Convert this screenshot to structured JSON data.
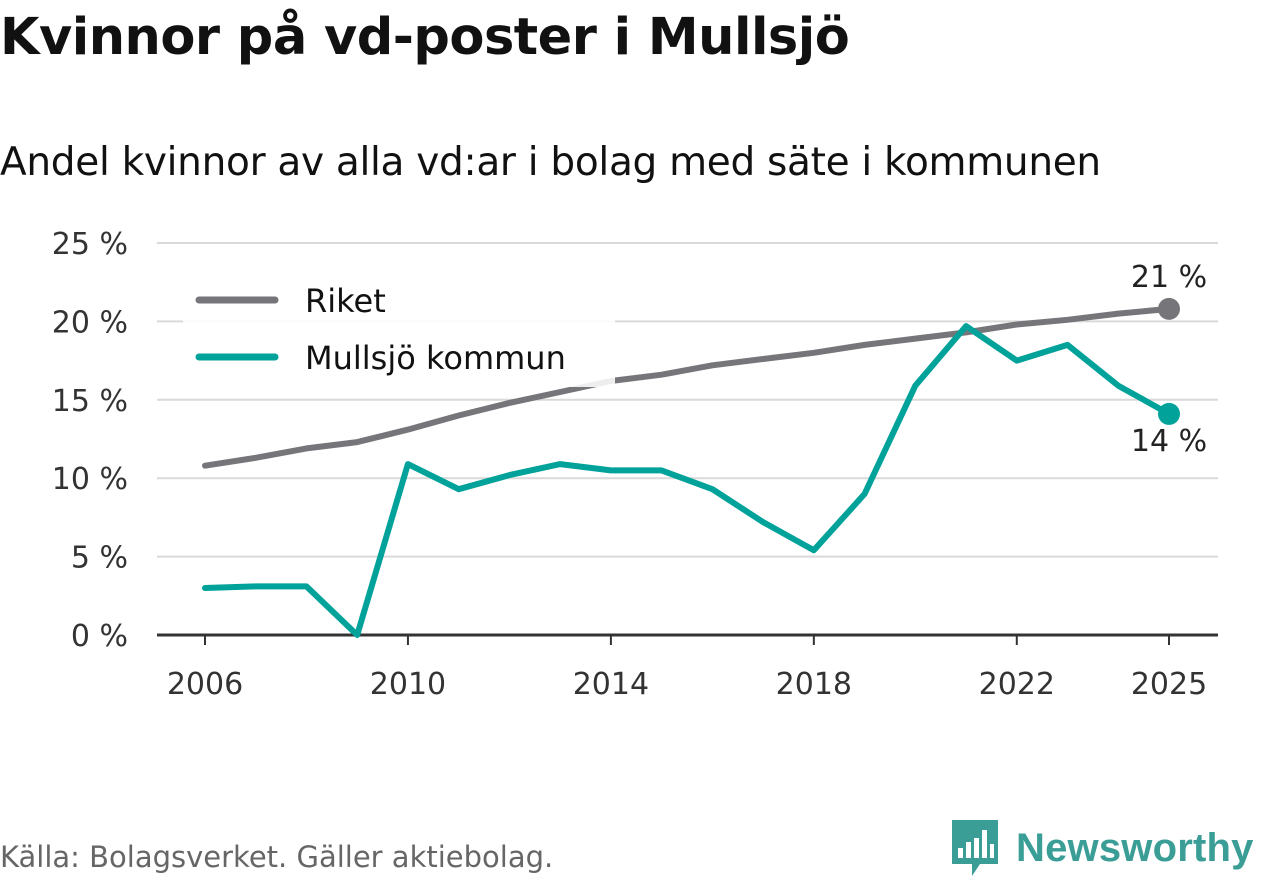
{
  "header": {
    "title": "Kvinnor på vd-poster i Mullsjö",
    "subtitle": "Andel kvinnor av alla vd:ar i bolag med säte i kommunen"
  },
  "footer": {
    "source": "Källa: Bolagsverket. Gäller aktiebolag.",
    "brand": "Newsworthy"
  },
  "chart_data": {
    "type": "line",
    "title": "Kvinnor på vd-poster i Mullsjö",
    "subtitle": "Andel kvinnor av alla vd:ar i bolag med säte i kommunen",
    "xlabel": "",
    "ylabel": "",
    "x": [
      2006,
      2007,
      2008,
      2009,
      2010,
      2011,
      2012,
      2013,
      2014,
      2015,
      2016,
      2017,
      2018,
      2019,
      2020,
      2021,
      2022,
      2023,
      2024,
      2025
    ],
    "x_ticks": [
      "2006",
      "2010",
      "2014",
      "2018",
      "2022",
      "2025"
    ],
    "y_ticks": [
      "0 %",
      "5 %",
      "10 %",
      "15 %",
      "20 %",
      "25 %"
    ],
    "ylim": [
      0,
      25
    ],
    "grid": true,
    "legend_position": "top-left",
    "series": [
      {
        "name": "Riket",
        "color": "#76757a",
        "values": [
          10.8,
          11.3,
          11.9,
          12.3,
          13.1,
          14.0,
          14.8,
          15.5,
          16.2,
          16.6,
          17.2,
          17.6,
          18.0,
          18.5,
          18.9,
          19.3,
          19.8,
          20.1,
          20.5,
          20.8
        ],
        "end_label": "21 %"
      },
      {
        "name": "Mullsjö kommun",
        "color": "#00a29a",
        "values": [
          3.0,
          3.1,
          3.1,
          0.0,
          10.9,
          9.3,
          10.2,
          10.9,
          10.5,
          10.5,
          9.3,
          7.2,
          5.4,
          9.0,
          15.9,
          19.7,
          17.5,
          18.5,
          15.9,
          14.1
        ],
        "end_label": "14 %"
      }
    ]
  }
}
